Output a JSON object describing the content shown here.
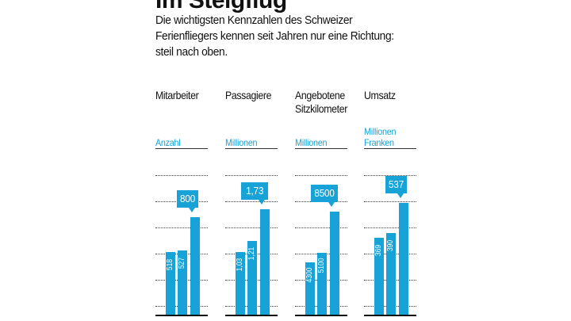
{
  "title": "Im Steigflug",
  "subtitle": [
    "Die wichtigsten Kennzahlen des Schweizer",
    "Ferienfliegers kennen seit Jahren nur eine Richtung:",
    "steil nach oben."
  ],
  "colors": {
    "accent": "#17a3d8",
    "text": "#111111",
    "background": "#ffffff"
  },
  "chart_data": [
    {
      "type": "bar",
      "title": [
        "Mitarbeiter"
      ],
      "unit": [
        "Anzahl"
      ],
      "labels": [
        "518",
        "527",
        "800"
      ],
      "values": [
        518,
        527,
        800
      ],
      "ylim": [
        0,
        1200
      ]
    },
    {
      "type": "bar",
      "title": [
        "Passagiere"
      ],
      "unit": [
        "Millionen"
      ],
      "labels": [
        "1,03",
        "1,21",
        "1,73"
      ],
      "values": [
        1.03,
        1.21,
        1.73
      ],
      "ylim": [
        0,
        2.4
      ]
    },
    {
      "type": "bar",
      "title": [
        "Angebotene",
        "Sitzkilometer"
      ],
      "unit": [
        "Millionen"
      ],
      "labels": [
        "4300",
        "5100",
        "8500"
      ],
      "values": [
        4300,
        5100,
        8500
      ],
      "ylim": [
        0,
        12000
      ]
    },
    {
      "type": "bar",
      "title": [
        "Umsatz"
      ],
      "unit": [
        "Millionen",
        "Franken"
      ],
      "labels": [
        "369",
        "390",
        "537"
      ],
      "values": [
        369,
        390,
        537
      ],
      "ylim": [
        0,
        700
      ]
    }
  ]
}
